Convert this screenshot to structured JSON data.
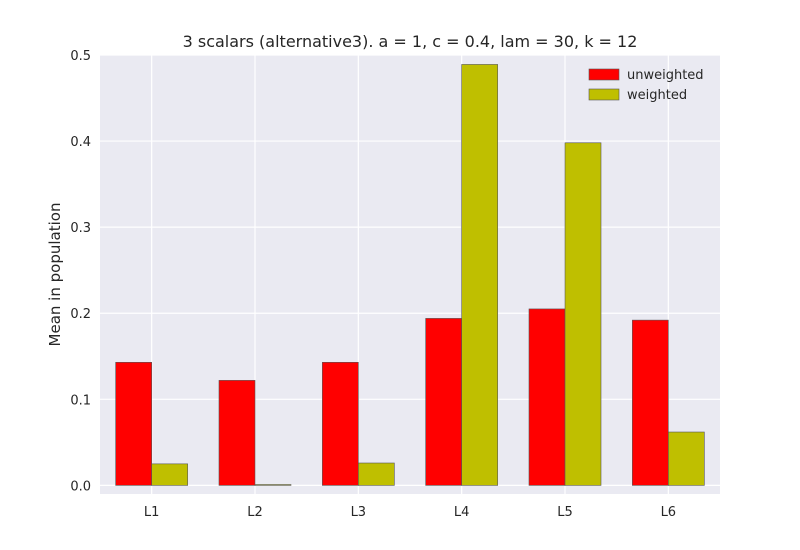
{
  "chart_data": {
    "type": "bar",
    "title": "3 scalars (alternative3). a = 1, c = 0.4, lam = 30, k = 12",
    "xlabel": "",
    "ylabel": "Mean in population",
    "categories": [
      "L1",
      "L2",
      "L3",
      "L4",
      "L5",
      "L6"
    ],
    "series": [
      {
        "name": "unweighted",
        "color": "#ff0000",
        "values": [
          0.143,
          0.122,
          0.143,
          0.194,
          0.205,
          0.192
        ]
      },
      {
        "name": "weighted",
        "color": "#bfbf00",
        "values": [
          0.025,
          0.001,
          0.026,
          0.489,
          0.398,
          0.062
        ]
      }
    ],
    "ylim": [
      -0.01,
      0.5
    ],
    "yticks": [
      0.0,
      0.1,
      0.2,
      0.3,
      0.4,
      0.5
    ],
    "ytick_labels": [
      "0.0",
      "0.1",
      "0.2",
      "0.3",
      "0.4",
      "0.5"
    ],
    "grid": true,
    "legend_position": "top-right",
    "background_color": "#eaeaf2"
  }
}
